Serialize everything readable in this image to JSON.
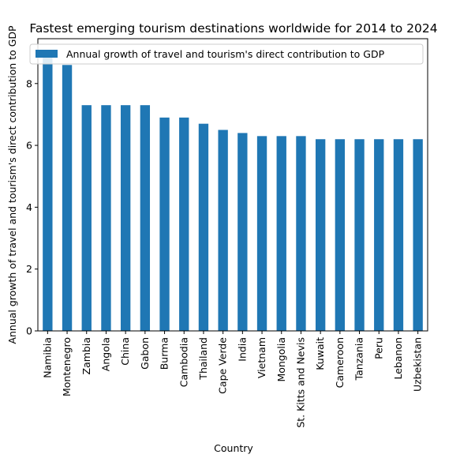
{
  "chart_data": {
    "type": "bar",
    "title": "Fastest emerging tourism destinations worldwide for 2014 to 2024",
    "xlabel": "Country",
    "ylabel": "Annual growth of travel and tourism's direct contribution to GDP",
    "ylim": [
      0,
      9.45
    ],
    "yticks": [
      0,
      2,
      4,
      6,
      8
    ],
    "grid": false,
    "legend_position": "top",
    "categories": [
      "Namibia",
      "Montenegro",
      "Zambia",
      "Angola",
      "China",
      "Gabon",
      "Burma",
      "Cambodia",
      "Thailand",
      "Cape Verde",
      "India",
      "Vietnam",
      "Mongolia",
      "St. Kitts and Nevis",
      "Kuwait",
      "Cameroon",
      "Tanzania",
      "Peru",
      "Lebanon",
      "Uzbekistan"
    ],
    "series": [
      {
        "name": "Annual growth of travel and tourism's direct contribution to GDP",
        "color": "#1f77b4",
        "values": [
          9.0,
          8.6,
          7.3,
          7.3,
          7.3,
          7.3,
          6.9,
          6.9,
          6.7,
          6.5,
          6.4,
          6.3,
          6.3,
          6.3,
          6.2,
          6.2,
          6.2,
          6.2,
          6.2,
          6.2
        ]
      }
    ]
  }
}
